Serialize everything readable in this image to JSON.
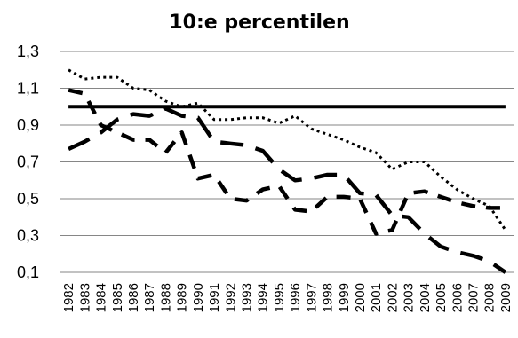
{
  "chart_data": {
    "type": "line",
    "title": "10:e percentilen",
    "xlabel": "",
    "ylabel": "",
    "ylim": [
      0.1,
      1.3
    ],
    "yticks": [
      "0,1",
      "0,3",
      "0,5",
      "0,7",
      "0,9",
      "1,1",
      "1,3"
    ],
    "grid": true,
    "categories": [
      "1982",
      "1983",
      "1984",
      "1985",
      "1986",
      "1987",
      "1988",
      "1989",
      "1990",
      "1991",
      "1992",
      "1993",
      "1994",
      "1995",
      "1996",
      "1997",
      "1998",
      "1999",
      "2000",
      "2001",
      "2002",
      "2003",
      "2004",
      "2005",
      "2006",
      "2007",
      "2008",
      "2009"
    ],
    "series": [
      {
        "style": "solid",
        "color": "#000000",
        "values": [
          1.0,
          1.0,
          1.0,
          1.0,
          1.0,
          1.0,
          1.0,
          1.0,
          1.0,
          1.0,
          1.0,
          1.0,
          1.0,
          1.0,
          1.0,
          1.0,
          1.0,
          1.0,
          1.0,
          1.0,
          1.0,
          1.0,
          1.0,
          1.0,
          1.0,
          1.0,
          1.0,
          1.0
        ]
      },
      {
        "style": "dotted",
        "color": "#000000",
        "values": [
          1.2,
          1.15,
          1.16,
          1.16,
          1.1,
          1.09,
          1.03,
          1.0,
          1.02,
          0.93,
          0.93,
          0.94,
          0.94,
          0.91,
          0.95,
          0.88,
          0.85,
          0.82,
          0.78,
          0.75,
          0.66,
          0.7,
          0.7,
          0.62,
          0.55,
          0.5,
          0.46,
          0.33
        ]
      },
      {
        "style": "long-dash",
        "color": "#000000",
        "values": [
          0.77,
          0.81,
          0.86,
          0.93,
          0.96,
          0.95,
          0.99,
          0.95,
          0.94,
          0.81,
          0.8,
          0.79,
          0.76,
          0.66,
          0.6,
          0.61,
          0.63,
          0.63,
          0.53,
          0.52,
          0.41,
          0.4,
          0.31,
          0.24,
          0.21,
          0.19,
          0.16,
          0.1
        ]
      },
      {
        "style": "medium-dash",
        "color": "#000000",
        "values": [
          1.09,
          1.07,
          0.9,
          0.86,
          0.82,
          0.82,
          0.75,
          0.86,
          0.61,
          0.63,
          0.5,
          0.49,
          0.55,
          0.57,
          0.44,
          0.43,
          0.51,
          0.51,
          0.5,
          0.31,
          0.33,
          0.53,
          0.54,
          0.51,
          0.48,
          0.46,
          0.45,
          0.45
        ]
      }
    ]
  }
}
